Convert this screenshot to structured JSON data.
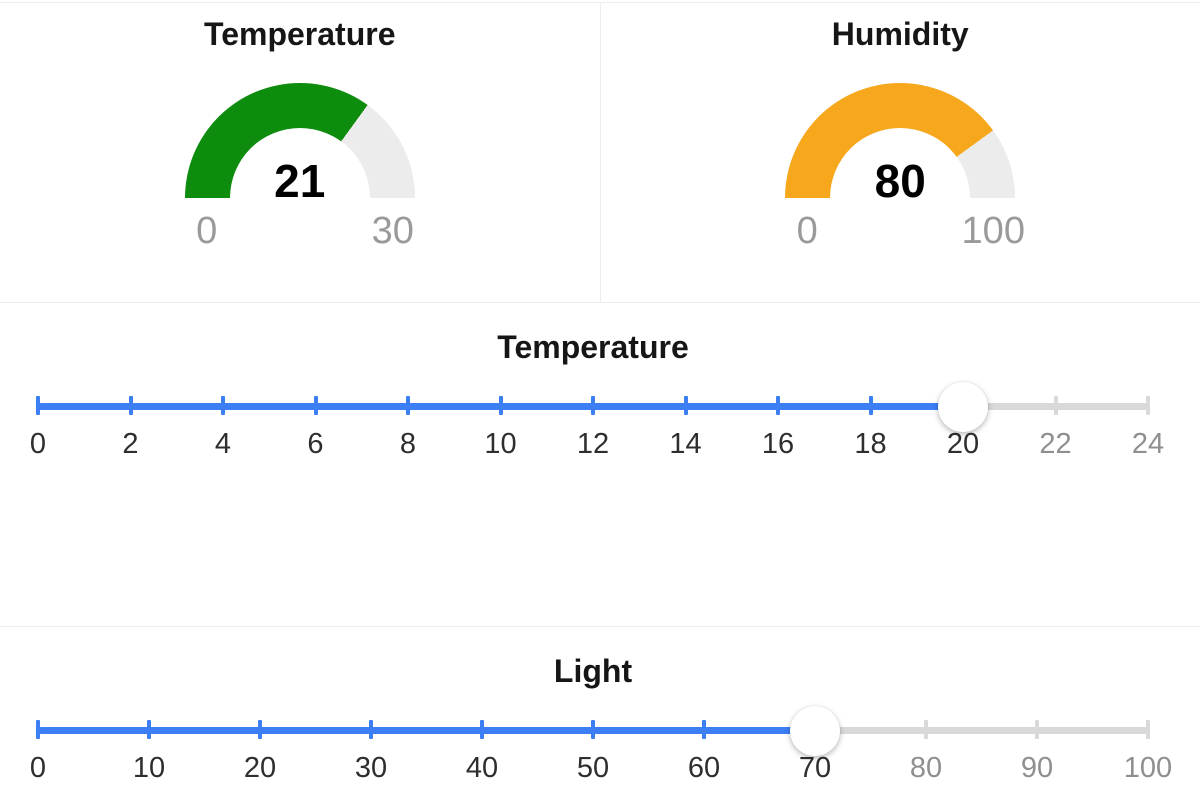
{
  "gauges": [
    {
      "title": "Temperature",
      "value": "21",
      "min": "0",
      "max": "30",
      "value_num": 21,
      "min_num": 0,
      "max_num": 30,
      "fill_color": "#0e8c0e",
      "track_color": "#ececec"
    },
    {
      "title": "Humidity",
      "value": "80",
      "min": "0",
      "max": "100",
      "value_num": 80,
      "min_num": 0,
      "max_num": 100,
      "fill_color": "#f6a71c",
      "track_color": "#ececec"
    }
  ],
  "sliders": [
    {
      "title": "Temperature",
      "value": 20,
      "min": 0,
      "max": 24,
      "ticks": [
        0,
        2,
        4,
        6,
        8,
        10,
        12,
        14,
        16,
        18,
        20,
        22,
        24
      ],
      "active_color": "#3c7ef4",
      "inactive_color": "#d9d9d9"
    },
    {
      "title": "Light",
      "value": 70,
      "min": 0,
      "max": 100,
      "ticks": [
        0,
        10,
        20,
        30,
        40,
        50,
        60,
        70,
        80,
        90,
        100
      ],
      "active_color": "#3c7ef4",
      "inactive_color": "#d9d9d9"
    }
  ],
  "colors": {
    "accent_blue": "#3c7ef4",
    "gauge_green": "#0e8c0e",
    "gauge_orange": "#f6a71c",
    "label_gray": "#9a9a9a",
    "divider": "#ededed"
  },
  "chart_data": [
    {
      "type": "gauge",
      "title": "Temperature",
      "value": 21,
      "range": [
        0,
        30
      ],
      "fill_color": "#0e8c0e"
    },
    {
      "type": "gauge",
      "title": "Humidity",
      "value": 80,
      "range": [
        0,
        100
      ],
      "fill_color": "#f6a71c"
    }
  ]
}
